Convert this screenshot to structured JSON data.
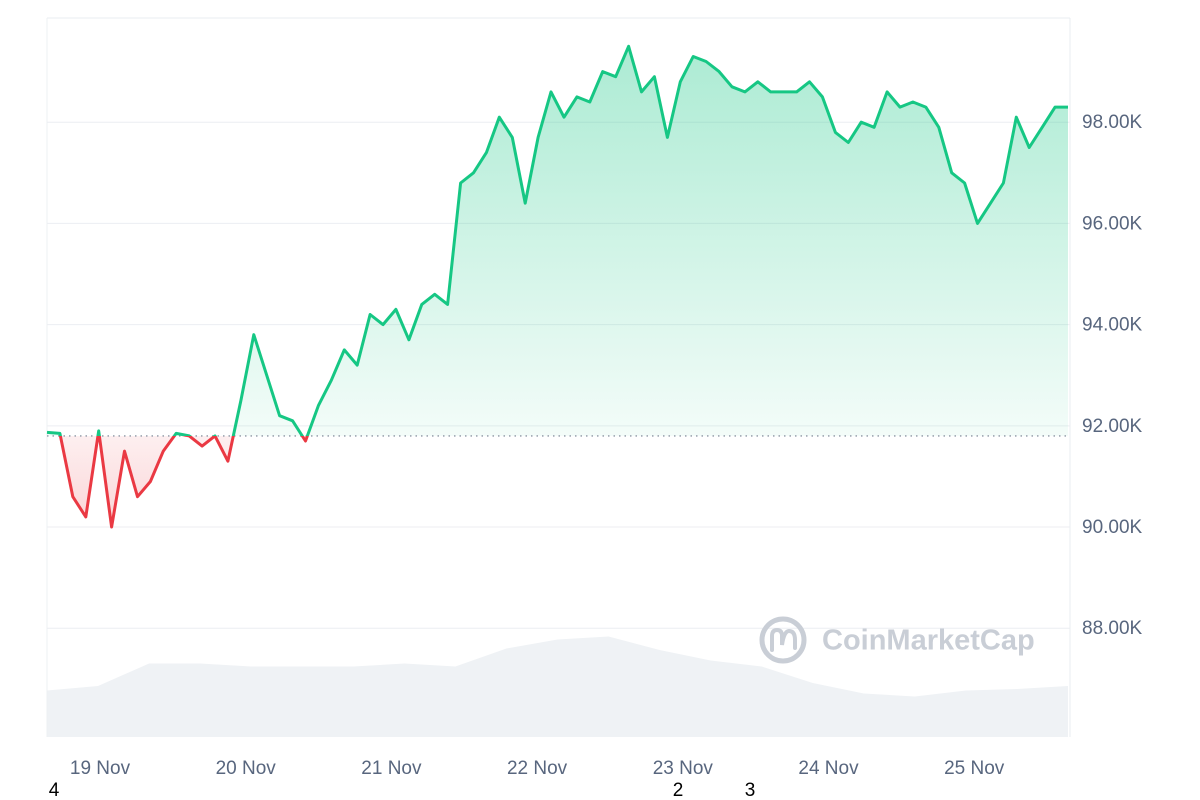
{
  "chart_data": {
    "type": "line",
    "x_tick_labels": [
      "19 Nov",
      "20 Nov",
      "21 Nov",
      "22 Nov",
      "23 Nov",
      "24 Nov",
      "25 Nov"
    ],
    "series": [
      {
        "name": "Price",
        "color": "#16c784",
        "below_color": "#ea3943",
        "values": [
          91870,
          91850,
          90600,
          90200,
          91900,
          90000,
          91500,
          90600,
          90900,
          91500,
          91850,
          91800,
          91600,
          91800,
          91300,
          92500,
          93800,
          93000,
          92200,
          92100,
          91700,
          92400,
          92900,
          93500,
          93200,
          94200,
          94000,
          94300,
          93700,
          94400,
          94600,
          94400,
          96800,
          97000,
          97400,
          98100,
          97700,
          96400,
          97700,
          98600,
          98100,
          98500,
          98400,
          99000,
          98900,
          99500,
          98600,
          98900,
          97700,
          98800,
          99300,
          99200,
          99000,
          98700,
          98600,
          98800,
          98600,
          98600,
          98600,
          98800,
          98500,
          97800,
          97600,
          98000,
          97900,
          98600,
          98300,
          98400,
          98300,
          97900,
          97000,
          96800,
          96000,
          96400,
          96800,
          98100,
          97500,
          97900,
          98300,
          98300
        ]
      },
      {
        "name": "Volume",
        "axis": "y2",
        "color": "#eff2f5",
        "values": [
          31,
          34,
          49,
          49,
          47,
          47,
          47,
          49,
          47,
          59,
          65,
          67,
          58,
          51,
          47,
          36,
          29,
          27,
          31,
          32,
          34
        ]
      }
    ],
    "baseline": 91800,
    "ylim": [
      85850,
      100060
    ],
    "yticks": [
      {
        "value": 88000,
        "label": "88.00K"
      },
      {
        "value": 90000,
        "label": "90.00K"
      },
      {
        "value": 92000,
        "label": "92.00K"
      },
      {
        "value": 94000,
        "label": "94.00K"
      },
      {
        "value": 96000,
        "label": "96.00K"
      },
      {
        "value": 98000,
        "label": "98.00K"
      }
    ],
    "y2lim": [
      0,
      100
    ],
    "grid": true,
    "watermark": "CoinMarketCap",
    "annotations": [
      "4",
      "2",
      "3"
    ]
  }
}
